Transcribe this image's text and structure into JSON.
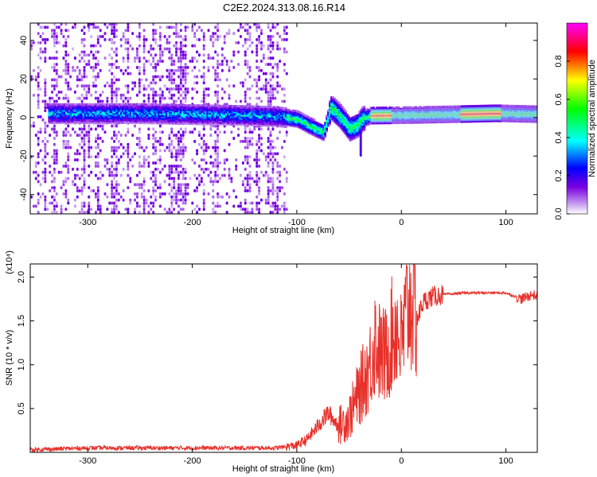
{
  "title": "C2E2.2024.313.08.16.R14",
  "chart_data": [
    {
      "type": "heatmap",
      "name": "spectrogram",
      "xlabel": "Height of straight line (km)",
      "ylabel": "Frequency (Hz)",
      "xlim": [
        -355,
        130
      ],
      "ylim": [
        -50,
        49
      ],
      "xticks": [
        -300,
        -200,
        -100,
        0,
        100
      ],
      "yticks": [
        -40,
        -20,
        0,
        20,
        40
      ],
      "colorbar": {
        "label": "Normalized spectral amplitude",
        "range": [
          0,
          1
        ],
        "ticks": [
          "0.0",
          "0.2",
          "0.4",
          "0.6",
          "0.8"
        ],
        "tick_values": [
          0.0,
          0.2,
          0.4,
          0.6,
          0.8
        ],
        "colormap": [
          "#ffffff",
          "#c8a0f0",
          "#7a00e0",
          "#0000ff",
          "#00ffff",
          "#00ff00",
          "#ffff00",
          "#ff0000",
          "#ff00ff"
        ]
      },
      "ridge": [
        [
          -335,
          2
        ],
        [
          -300,
          2
        ],
        [
          -250,
          2
        ],
        [
          -200,
          1.5
        ],
        [
          -150,
          1
        ],
        [
          -120,
          0.5
        ],
        [
          -100,
          -1
        ],
        [
          -90,
          -4
        ],
        [
          -75,
          -8
        ],
        [
          -68,
          5
        ],
        [
          -60,
          1
        ],
        [
          -50,
          -6
        ],
        [
          -42,
          -4
        ],
        [
          -38,
          -1
        ],
        [
          -30,
          0.8
        ],
        [
          0,
          1
        ],
        [
          50,
          1.5
        ],
        [
          90,
          2
        ],
        [
          130,
          1.5
        ]
      ]
    },
    {
      "type": "line",
      "name": "snr",
      "xlabel": "Height of straight line (km)",
      "ylabel": "SNR (10 * v/v)",
      "y_multiplier": "(x10⁴)",
      "xlim": [
        -355,
        130
      ],
      "ylim": [
        0,
        2.15
      ],
      "xticks": [
        -300,
        -200,
        -100,
        0,
        100
      ],
      "yticks": [
        "0.5",
        "1.0",
        "1.5",
        "2.0"
      ],
      "ytick_values": [
        0.5,
        1.0,
        1.5,
        2.0
      ],
      "color": "#e8302a",
      "x": [
        -355,
        -300,
        -200,
        -120,
        -100,
        -90,
        -80,
        -70,
        -60,
        -50,
        -40,
        -30,
        -25,
        -20,
        -15,
        -10,
        -5,
        0,
        5,
        10,
        15,
        20,
        25,
        30,
        40,
        60,
        100,
        115,
        125,
        130
      ],
      "y": [
        0.03,
        0.05,
        0.05,
        0.05,
        0.08,
        0.15,
        0.3,
        0.45,
        0.3,
        0.4,
        0.7,
        1.0,
        1.3,
        1.1,
        1.1,
        1.3,
        1.45,
        1.2,
        1.6,
        1.75,
        1.5,
        1.7,
        1.75,
        1.78,
        1.8,
        1.82,
        1.82,
        1.75,
        1.8,
        1.78
      ]
    }
  ]
}
